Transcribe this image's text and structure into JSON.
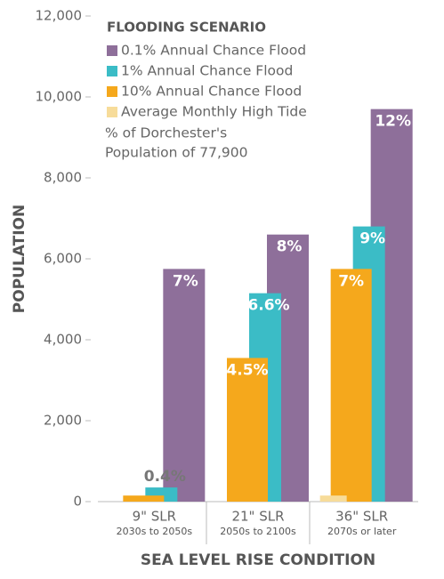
{
  "chart_data": {
    "type": "bar",
    "legend_title": "FLOODING SCENARIO",
    "legend_note": [
      "% of Dorchester's",
      "Population of 77,900"
    ],
    "xlabel": "SEA LEVEL RISE CONDITION",
    "ylabel": "POPULATION",
    "categories": [
      "9\" SLR",
      "21\" SLR",
      "36\" SLR"
    ],
    "category_periods": [
      "2030s to 2050s",
      "2050s to 2100s",
      "2070s or later"
    ],
    "series": [
      {
        "name": "0.1% Annual Chance Flood",
        "color": "#8e6f9a",
        "values": [
          5750,
          6600,
          9700
        ],
        "value_labels": [
          "7%",
          "8%",
          "12%"
        ]
      },
      {
        "name": "1% Annual Chance Flood",
        "color": "#3bbcc6",
        "values": [
          350,
          5150,
          6800
        ],
        "value_labels": [
          "0.4%",
          "6.6%",
          "9%"
        ]
      },
      {
        "name": "10% Annual Chance Flood",
        "color": "#f5a81c",
        "values": [
          150,
          3550,
          5750
        ],
        "value_labels": [
          null,
          "4.5%",
          "7%"
        ]
      },
      {
        "name": "Average Monthly High Tide",
        "color": "#f7dc9a",
        "values": [
          0,
          0,
          150
        ],
        "value_labels": [
          null,
          null,
          null
        ]
      }
    ],
    "ylim": [
      0,
      12000
    ],
    "yticks": [
      {
        "value": 0,
        "label": "0"
      },
      {
        "value": 2000,
        "label": "2,000"
      },
      {
        "value": 4000,
        "label": "4,000"
      },
      {
        "value": 6000,
        "label": "6,000"
      },
      {
        "value": 8000,
        "label": "8,000"
      },
      {
        "value": 10000,
        "label": "10,000"
      },
      {
        "value": 12000,
        "label": "12,000"
      }
    ]
  }
}
